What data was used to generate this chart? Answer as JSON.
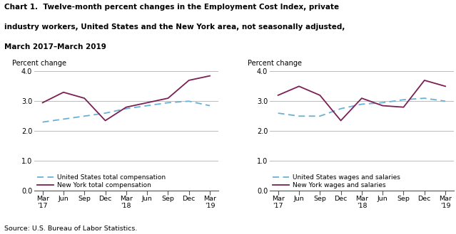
{
  "title_line1": "Chart 1.  Twelve-month percent changes in the Employment Cost Index, private",
  "title_line2": "industry workers, United States and the New York area, not seasonally adjusted,",
  "title_line3": "March 2017–March 2019",
  "source": "Source: U.S. Bureau of Labor Statistics.",
  "ylabel": "Percent change",
  "x_labels": [
    "Mar\n'17",
    "Jun",
    "Sep",
    "Dec",
    "Mar\n'18",
    "Jun",
    "Sep",
    "Dec",
    "Mar\n'19"
  ],
  "ylim": [
    0.0,
    4.0
  ],
  "yticks": [
    0.0,
    1.0,
    2.0,
    3.0,
    4.0
  ],
  "chart1": {
    "us_total": [
      2.3,
      2.4,
      2.5,
      2.6,
      2.75,
      2.85,
      2.95,
      3.0,
      2.85
    ],
    "ny_total": [
      2.95,
      3.3,
      3.1,
      2.35,
      2.8,
      2.95,
      3.1,
      3.7,
      3.85
    ],
    "us_label": "United States total compensation",
    "ny_label": "New York total compensation"
  },
  "chart2": {
    "us_wages": [
      2.6,
      2.5,
      2.5,
      2.75,
      2.9,
      2.95,
      3.05,
      3.1,
      3.0
    ],
    "ny_wages": [
      3.2,
      3.5,
      3.2,
      2.35,
      3.1,
      2.85,
      2.8,
      3.7,
      3.5
    ],
    "us_label": "United States wages and salaries",
    "ny_label": "New York wages and salaries"
  },
  "us_color": "#6ab0d4",
  "ny_color": "#7b1f55",
  "background_color": "#ffffff"
}
